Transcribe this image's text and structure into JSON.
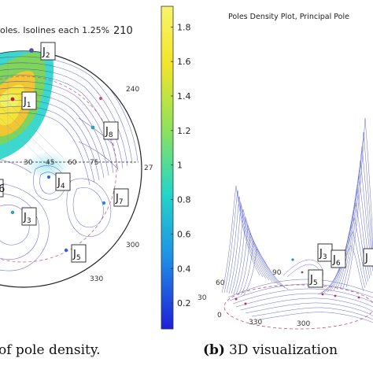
{
  "panel_a": {
    "title": "oles. Isolines each 1.25%",
    "title_number": "210",
    "az_labels": [
      "240",
      "27",
      "300",
      "330"
    ],
    "grid_labels": [
      "30",
      "45",
      "60",
      "75"
    ],
    "joints": [
      {
        "base": "J",
        "sub": "1"
      },
      {
        "base": "J",
        "sub": "2"
      },
      {
        "base": "J",
        "sub": "3"
      },
      {
        "base": "J",
        "sub": "4"
      },
      {
        "base": "J",
        "sub": "5"
      },
      {
        "base": "J",
        "sub": "7"
      },
      {
        "base": "J",
        "sub": "8"
      }
    ],
    "edge_label": "6",
    "caption": "of pole density."
  },
  "colorbar": {
    "ticks": [
      "1.8",
      "1.6",
      "1.4",
      "1.2",
      "1",
      "0.8",
      "0.6",
      "0.4",
      "0.2"
    ],
    "tick_values": [
      1.8,
      1.6,
      1.4,
      1.2,
      1.0,
      0.8,
      0.6,
      0.4,
      0.2
    ],
    "range": [
      0.05,
      1.92
    ],
    "colors": [
      "#1f1fd6",
      "#1f8fe6",
      "#22d6c8",
      "#8ee25a",
      "#f2e42a",
      "#f8f46a"
    ]
  },
  "panel_b": {
    "title": "Poles Density Plot, Principal Pole",
    "joints": [
      {
        "base": "J",
        "sub": "3"
      },
      {
        "base": "J",
        "sub": "6"
      },
      {
        "base": "J",
        "sub": "5"
      },
      {
        "base": "J",
        "sub": ""
      }
    ],
    "axis_labels": [
      "90",
      "60",
      "30",
      "0",
      "330",
      "300"
    ],
    "caption_bold": "(b)",
    "caption": "3D visualization"
  },
  "colors": {
    "isoline": "#3b3fc0",
    "ring": "#222222",
    "dashed": "#c0557a"
  }
}
